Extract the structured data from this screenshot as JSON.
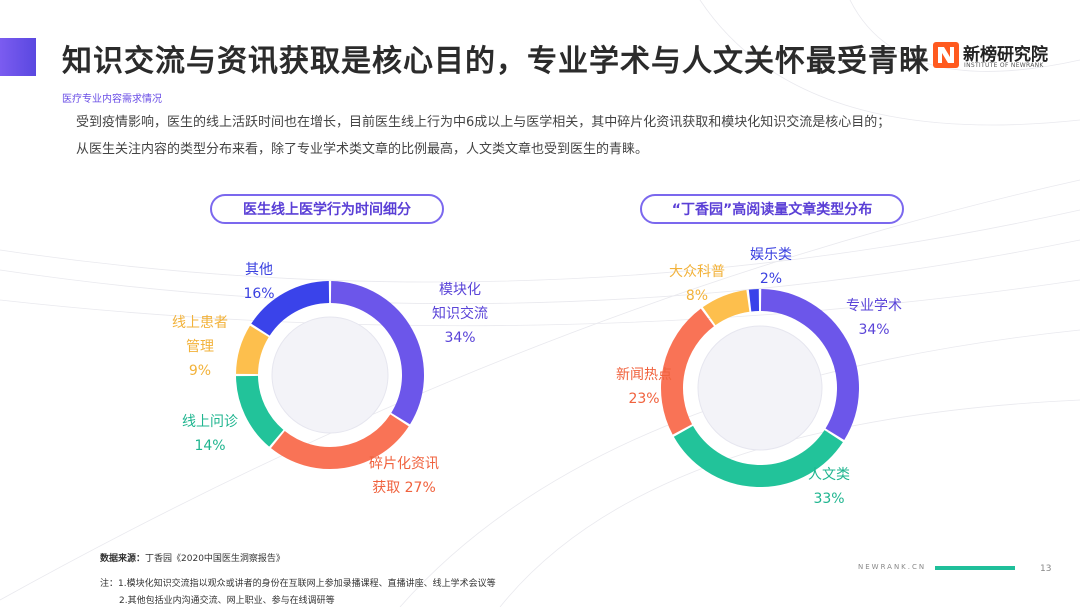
{
  "header": {
    "title": "知识交流与资讯获取是核心目的，专业学术与人文关怀最受青睐",
    "subtitle": "医疗专业内容需求情况",
    "logo_name": "新榜研究院",
    "logo_sub": "INSTITUTE OF NEWRANK",
    "accent": "#6b52e8"
  },
  "description": {
    "line1": "受到疫情影响，医生的线上活跃时间也在增长，目前医生线上行为中6成以上与医学相关，其中碎片化资讯获取和模块化知识交流是核心目的；",
    "line2": "从医生关注内容的类型分布来看，除了专业学术类文章的比例最高，人文类文章也受到医生的青睐。"
  },
  "chart_data": [
    {
      "type": "pie",
      "title": "医生线上医学行为时间细分",
      "slices": [
        {
          "label": "模块化知识交流",
          "label_lines": [
            "模块化",
            "知识交流",
            "34%"
          ],
          "value": 34,
          "color": "#6c56ea"
        },
        {
          "label": "碎片化资讯获取",
          "label_lines": [
            "碎片化资讯",
            "获取 27%"
          ],
          "value": 27,
          "color": "#f97356"
        },
        {
          "label": "线上问诊",
          "label_lines": [
            "线上问诊",
            "14%"
          ],
          "value": 14,
          "color": "#22c39a"
        },
        {
          "label": "线上患者管理",
          "label_lines": [
            "线上患者",
            "管理",
            "9%"
          ],
          "value": 9,
          "color": "#fdbf4d"
        },
        {
          "label": "其他",
          "label_lines": [
            "其他",
            "16%"
          ],
          "value": 16,
          "color": "#3a43ea"
        }
      ]
    },
    {
      "type": "pie",
      "title": "“丁香园”高阅读量文章类型分布",
      "slices": [
        {
          "label": "专业学术",
          "label_lines": [
            "专业学术",
            "34%"
          ],
          "value": 34,
          "color": "#6c56ea"
        },
        {
          "label": "人文类",
          "label_lines": [
            "人文类",
            "33%"
          ],
          "value": 33,
          "color": "#22c39a"
        },
        {
          "label": "新闻热点",
          "label_lines": [
            "新闻热点",
            "23%"
          ],
          "value": 23,
          "color": "#f97356"
        },
        {
          "label": "大众科普",
          "label_lines": [
            "大众科普",
            "8%"
          ],
          "value": 8,
          "color": "#fdbf4d"
        },
        {
          "label": "娱乐类",
          "label_lines": [
            "娱乐类",
            "2%"
          ],
          "value": 2,
          "color": "#3a43ea"
        }
      ]
    }
  ],
  "footer": {
    "source_label": "数据来源：",
    "source": "丁香园《2020中国医生洞察报告》",
    "note1": "注：1.模块化知识交流指以观众或讲者的身份在互联网上参加录播课程、直播讲座、线上学术会议等",
    "note2": "2.其他包括业内沟通交流、网上职业、参与在线调研等",
    "site": "NEWRANK.CN",
    "page": "13"
  }
}
